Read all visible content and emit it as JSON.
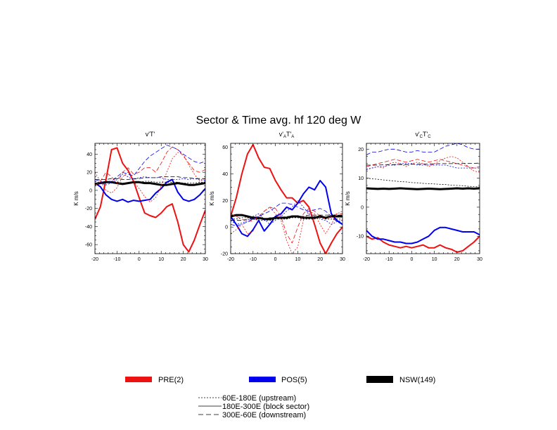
{
  "figure": {
    "title": "Sector & Time avg. hf 120 deg W"
  },
  "legend": {
    "groups": [
      {
        "label": "PRE(2)",
        "color": "#ee1111"
      },
      {
        "label": "POS(5)",
        "color": "#0000ee"
      },
      {
        "label": "NSW(149)",
        "color": "#000000"
      }
    ],
    "styles": [
      {
        "label": "60E-180E (upstream)",
        "dash": "short"
      },
      {
        "label": "180E-300E (block sector)",
        "dash": "solid"
      },
      {
        "label": "300E-60E (downstream)",
        "dash": "long"
      }
    ]
  },
  "chart_data": [
    {
      "type": "line",
      "title_parts": [
        "v'T'"
      ],
      "ylabel": "K m/s",
      "xlim": [
        -20,
        30
      ],
      "ylim": [
        -70,
        52
      ],
      "xticks": [
        -20,
        -10,
        0,
        10,
        20,
        30
      ],
      "yticks": [
        -60,
        -40,
        -20,
        0,
        20,
        40
      ],
      "x": [
        -20,
        -17.5,
        -15,
        -12.5,
        -10,
        -7.5,
        -5,
        -2.5,
        0,
        2.5,
        5,
        7.5,
        10,
        12.5,
        15,
        17.5,
        20,
        22.5,
        25,
        27.5,
        30
      ],
      "series": [
        {
          "group": "PRE(2)",
          "style": "solid",
          "values": [
            -32,
            -18,
            12,
            45,
            47,
            30,
            22,
            10,
            -8,
            -25,
            -28,
            -30,
            -25,
            -18,
            -15,
            -35,
            -60,
            -68,
            -55,
            -38,
            -22
          ]
        },
        {
          "group": "POS(5)",
          "style": "solid",
          "values": [
            8,
            4,
            -5,
            -10,
            -12,
            -10,
            -13,
            -11,
            -12,
            -11,
            -10,
            -3,
            2,
            9,
            12,
            -2,
            -10,
            -12,
            -10,
            -5,
            2
          ]
        },
        {
          "group": "NSW(149)",
          "style": "solid",
          "values": [
            7,
            8,
            9,
            9,
            8,
            7,
            8,
            9,
            9,
            8,
            8,
            7,
            6,
            6,
            7,
            8,
            7,
            6,
            6,
            7,
            8
          ]
        },
        {
          "group": "PRE(2)",
          "style": "short",
          "values": [
            20,
            10,
            0,
            -3,
            3,
            15,
            20,
            10,
            2,
            -7,
            -13,
            -8,
            5,
            20,
            35,
            42,
            40,
            28,
            18,
            10,
            13
          ]
        },
        {
          "group": "PRE(2)",
          "style": "long",
          "values": [
            5,
            10,
            20,
            15,
            8,
            20,
            25,
            18,
            20,
            25,
            25,
            20,
            30,
            42,
            48,
            45,
            38,
            30,
            22,
            20,
            23
          ]
        },
        {
          "group": "POS(5)",
          "style": "short",
          "values": [
            10,
            8,
            6,
            8,
            12,
            18,
            15,
            12,
            14,
            15,
            14,
            14,
            14,
            12,
            12,
            12,
            13,
            12,
            13,
            12,
            11
          ]
        },
        {
          "group": "POS(5)",
          "style": "long",
          "values": [
            12,
            10,
            8,
            10,
            15,
            20,
            18,
            16,
            24,
            32,
            38,
            42,
            46,
            50,
            48,
            45,
            40,
            36,
            32,
            30,
            32
          ]
        },
        {
          "group": "NSW(149)",
          "style": "short",
          "values": [
            8,
            9,
            10,
            10,
            9,
            8,
            8,
            9,
            9,
            10,
            10,
            9,
            9,
            9,
            9,
            9,
            8,
            8,
            8,
            9,
            9
          ]
        },
        {
          "group": "NSW(149)",
          "style": "long",
          "values": [
            12,
            12,
            12,
            13,
            13,
            12,
            12,
            13,
            13,
            14,
            14,
            14,
            15,
            15,
            15,
            15,
            14,
            14,
            13,
            13,
            13
          ]
        }
      ]
    },
    {
      "type": "line",
      "title_parts": [
        "v'",
        "A",
        "T'",
        "A"
      ],
      "ylabel": "K m/s",
      "xlim": [
        -20,
        30
      ],
      "ylim": [
        -20,
        63
      ],
      "xticks": [
        -20,
        -10,
        0,
        10,
        20,
        30
      ],
      "yticks": [
        -20,
        0,
        20,
        40,
        60
      ],
      "x": [
        -20,
        -17.5,
        -15,
        -12.5,
        -10,
        -7.5,
        -5,
        -2.5,
        0,
        2.5,
        5,
        7.5,
        10,
        12.5,
        15,
        17.5,
        20,
        22.5,
        25,
        27.5,
        30
      ],
      "series": [
        {
          "group": "PRE(2)",
          "style": "solid",
          "values": [
            8,
            22,
            40,
            55,
            62,
            52,
            45,
            44,
            35,
            28,
            22,
            22,
            18,
            20,
            15,
            2,
            -12,
            -20,
            -12,
            -5,
            0
          ]
        },
        {
          "group": "POS(5)",
          "style": "solid",
          "values": [
            8,
            2,
            -5,
            -7,
            -2,
            5,
            -3,
            2,
            8,
            10,
            15,
            13,
            18,
            25,
            30,
            28,
            35,
            30,
            10,
            5,
            2
          ]
        },
        {
          "group": "NSW(149)",
          "style": "solid",
          "values": [
            8,
            9,
            9,
            8,
            7,
            7,
            6,
            6,
            7,
            7,
            7,
            8,
            8,
            7,
            7,
            7,
            8,
            7,
            8,
            8,
            8
          ]
        },
        {
          "group": "PRE(2)",
          "style": "short",
          "values": [
            -5,
            -2,
            2,
            -5,
            -3,
            5,
            12,
            15,
            10,
            5,
            -10,
            -20,
            -15,
            5,
            12,
            10,
            2,
            -5,
            2,
            10,
            12
          ]
        },
        {
          "group": "PRE(2)",
          "style": "long",
          "values": [
            10,
            8,
            6,
            4,
            5,
            8,
            12,
            15,
            14,
            8,
            -5,
            -12,
            0,
            10,
            14,
            12,
            8,
            6,
            8,
            10,
            10
          ]
        },
        {
          "group": "POS(5)",
          "style": "short",
          "values": [
            5,
            2,
            3,
            5,
            8,
            10,
            6,
            2,
            5,
            8,
            12,
            15,
            20,
            15,
            10,
            8,
            6,
            5,
            2,
            4,
            5
          ]
        },
        {
          "group": "POS(5)",
          "style": "long",
          "values": [
            2,
            1,
            2,
            4,
            6,
            8,
            10,
            12,
            15,
            18,
            18,
            17,
            15,
            13,
            12,
            13,
            14,
            12,
            8,
            4,
            2
          ]
        },
        {
          "group": "NSW(149)",
          "style": "short",
          "values": [
            6,
            6,
            7,
            7,
            6,
            5,
            5,
            5,
            6,
            6,
            6,
            7,
            7,
            6,
            6,
            6,
            7,
            6,
            6,
            6,
            6
          ]
        },
        {
          "group": "NSW(149)",
          "style": "long",
          "values": [
            5,
            5,
            5,
            6,
            6,
            6,
            6,
            7,
            7,
            7,
            8,
            8,
            8,
            8,
            9,
            9,
            9,
            9,
            9,
            9,
            9
          ]
        }
      ]
    },
    {
      "type": "line",
      "title_parts": [
        "v'",
        "C",
        "T'",
        "C"
      ],
      "ylabel": "K m/s",
      "xlim": [
        -20,
        30
      ],
      "ylim": [
        -16,
        22
      ],
      "xticks": [
        -20,
        -10,
        0,
        10,
        20,
        30
      ],
      "yticks": [
        -10,
        0,
        10,
        20
      ],
      "x": [
        -20,
        -17.5,
        -15,
        -12.5,
        -10,
        -7.5,
        -5,
        -2.5,
        0,
        2.5,
        5,
        7.5,
        10,
        12.5,
        15,
        17.5,
        20,
        22.5,
        25,
        27.5,
        30
      ],
      "series": [
        {
          "group": "PRE(2)",
          "style": "solid",
          "values": [
            -10,
            -11,
            -10.5,
            -12,
            -13,
            -13.5,
            -14,
            -13.5,
            -14,
            -13.5,
            -13,
            -14,
            -14,
            -13,
            -14,
            -14.5,
            -15.5,
            -15,
            -13.5,
            -12,
            -10
          ]
        },
        {
          "group": "POS(5)",
          "style": "solid",
          "values": [
            -8,
            -10,
            -11,
            -11,
            -11.5,
            -12,
            -12,
            -12.5,
            -12.5,
            -12,
            -11,
            -10,
            -8,
            -7,
            -7,
            -7.5,
            -8,
            -8.5,
            -8.5,
            -8.5,
            -9.5
          ]
        },
        {
          "group": "NSW(149)",
          "style": "solid",
          "values": [
            6.5,
            6.4,
            6.3,
            6.4,
            6.3,
            6.4,
            6.5,
            6.4,
            6.3,
            6.2,
            6.3,
            6.4,
            6.3,
            6.2,
            6.3,
            6.4,
            6.5,
            6.4,
            6.5,
            6.4,
            6.5
          ]
        },
        {
          "group": "PRE(2)",
          "style": "short",
          "values": [
            13,
            13.5,
            14,
            13.5,
            15,
            15.5,
            15,
            14,
            15,
            15.5,
            15,
            14,
            15,
            16,
            17,
            17.5,
            17,
            15.5,
            14,
            12.5,
            12
          ]
        },
        {
          "group": "PRE(2)",
          "style": "long",
          "values": [
            14,
            14.5,
            15,
            15.5,
            16,
            16.5,
            16,
            15.5,
            16,
            16.5,
            16,
            15.5,
            16,
            16.5,
            16,
            15.5,
            15,
            14.5,
            14,
            13.5,
            14
          ]
        },
        {
          "group": "POS(5)",
          "style": "short",
          "values": [
            13,
            13.5,
            14,
            14,
            14.5,
            14.5,
            15,
            15,
            15,
            14.5,
            14.5,
            14.5,
            14.5,
            14.5,
            14.5,
            14,
            13.5,
            13.5,
            13.5,
            13.5,
            13.5
          ]
        },
        {
          "group": "POS(5)",
          "style": "long",
          "values": [
            18,
            19,
            19,
            19.5,
            20,
            20,
            19.5,
            19,
            19,
            19.5,
            19,
            19,
            19,
            20,
            21,
            21.5,
            22,
            21.5,
            20.5,
            20,
            20
          ]
        },
        {
          "group": "NSW(149)",
          "style": "short",
          "values": [
            10,
            9.8,
            9.6,
            9.4,
            9.2,
            9,
            8.8,
            8.7,
            8.5,
            8.4,
            8.2,
            8.1,
            8,
            7.9,
            7.8,
            7.6,
            7.5,
            7.4,
            7.2,
            7.1,
            7
          ]
        },
        {
          "group": "NSW(149)",
          "style": "long",
          "values": [
            14.5,
            14.5,
            14.5,
            14.6,
            14.6,
            14.7,
            14.7,
            14.7,
            14.8,
            14.8,
            14.8,
            14.9,
            14.9,
            15,
            15,
            15,
            15,
            15.1,
            15.1,
            15.1,
            15.2
          ]
        }
      ]
    }
  ]
}
